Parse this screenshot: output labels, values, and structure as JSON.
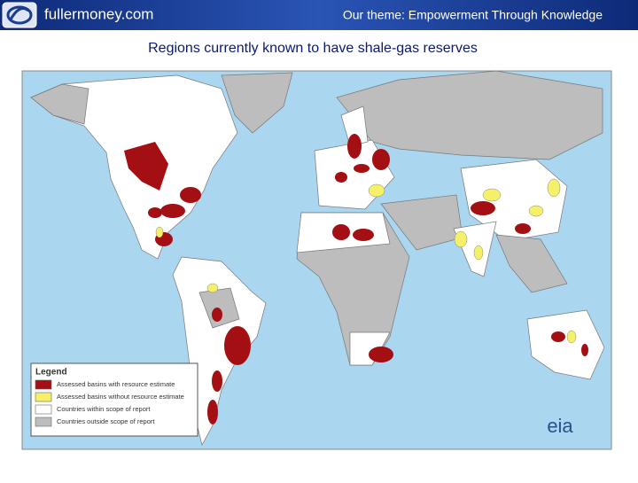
{
  "header": {
    "site": "fullermoney.com",
    "theme": "Our theme: Empowerment Through Knowledge"
  },
  "title": "Regions currently known to have shale-gas reserves",
  "legend": {
    "title": "Legend",
    "items": [
      {
        "label": "Assessed basins with resource estimate",
        "color": "#a30f12"
      },
      {
        "label": "Assessed basins without resource estimate",
        "color": "#f5f06a"
      },
      {
        "label": "Countries within scope of report",
        "color": "#ffffff"
      },
      {
        "label": "Countries outside scope of report",
        "color": "#bdbdbd"
      }
    ]
  },
  "logo": "eia"
}
